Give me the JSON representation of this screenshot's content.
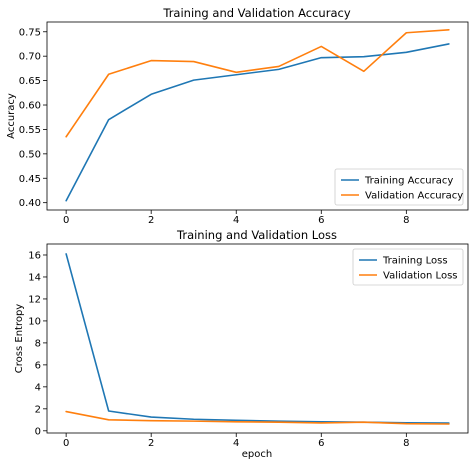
{
  "chart_data": [
    {
      "type": "line",
      "title": "Training and Validation Accuracy",
      "xlabel": "",
      "ylabel": "Accuracy",
      "x": [
        0,
        1,
        2,
        3,
        4,
        5,
        6,
        7,
        8,
        9
      ],
      "xlim": [
        -0.45,
        9.45
      ],
      "ylim": [
        0.385,
        0.77
      ],
      "xticks": [
        0,
        2,
        4,
        6,
        8
      ],
      "yticks": [
        0.4,
        0.45,
        0.5,
        0.55,
        0.6,
        0.65,
        0.7,
        0.75
      ],
      "ytick_labels": [
        "0.40",
        "0.45",
        "0.50",
        "0.55",
        "0.60",
        "0.65",
        "0.70",
        "0.75"
      ],
      "legend_position": "lower-right",
      "series": [
        {
          "name": "Training Accuracy",
          "color": "#1f77b4",
          "values": [
            0.404,
            0.57,
            0.622,
            0.651,
            0.662,
            0.673,
            0.697,
            0.699,
            0.708,
            0.725
          ]
        },
        {
          "name": "Validation Accuracy",
          "color": "#ff7f0e",
          "values": [
            0.535,
            0.663,
            0.691,
            0.689,
            0.667,
            0.679,
            0.72,
            0.669,
            0.748,
            0.754
          ]
        }
      ]
    },
    {
      "type": "line",
      "title": "Training and Validation Loss",
      "xlabel": "epoch",
      "ylabel": "Cross Entropy",
      "x": [
        0,
        1,
        2,
        3,
        4,
        5,
        6,
        7,
        8,
        9
      ],
      "xlim": [
        -0.45,
        9.45
      ],
      "ylim": [
        -0.2,
        17.0
      ],
      "xticks": [
        0,
        2,
        4,
        6,
        8
      ],
      "yticks": [
        0,
        2,
        4,
        6,
        8,
        10,
        12,
        14,
        16
      ],
      "ytick_labels": [
        "0",
        "2",
        "4",
        "6",
        "8",
        "10",
        "12",
        "14",
        "16"
      ],
      "legend_position": "upper-right",
      "series": [
        {
          "name": "Training Loss",
          "color": "#1f77b4",
          "values": [
            16.1,
            1.8,
            1.25,
            1.05,
            0.95,
            0.88,
            0.82,
            0.78,
            0.73,
            0.7
          ]
        },
        {
          "name": "Validation Loss",
          "color": "#ff7f0e",
          "values": [
            1.75,
            1.0,
            0.92,
            0.88,
            0.82,
            0.78,
            0.72,
            0.78,
            0.65,
            0.62
          ]
        }
      ]
    }
  ]
}
